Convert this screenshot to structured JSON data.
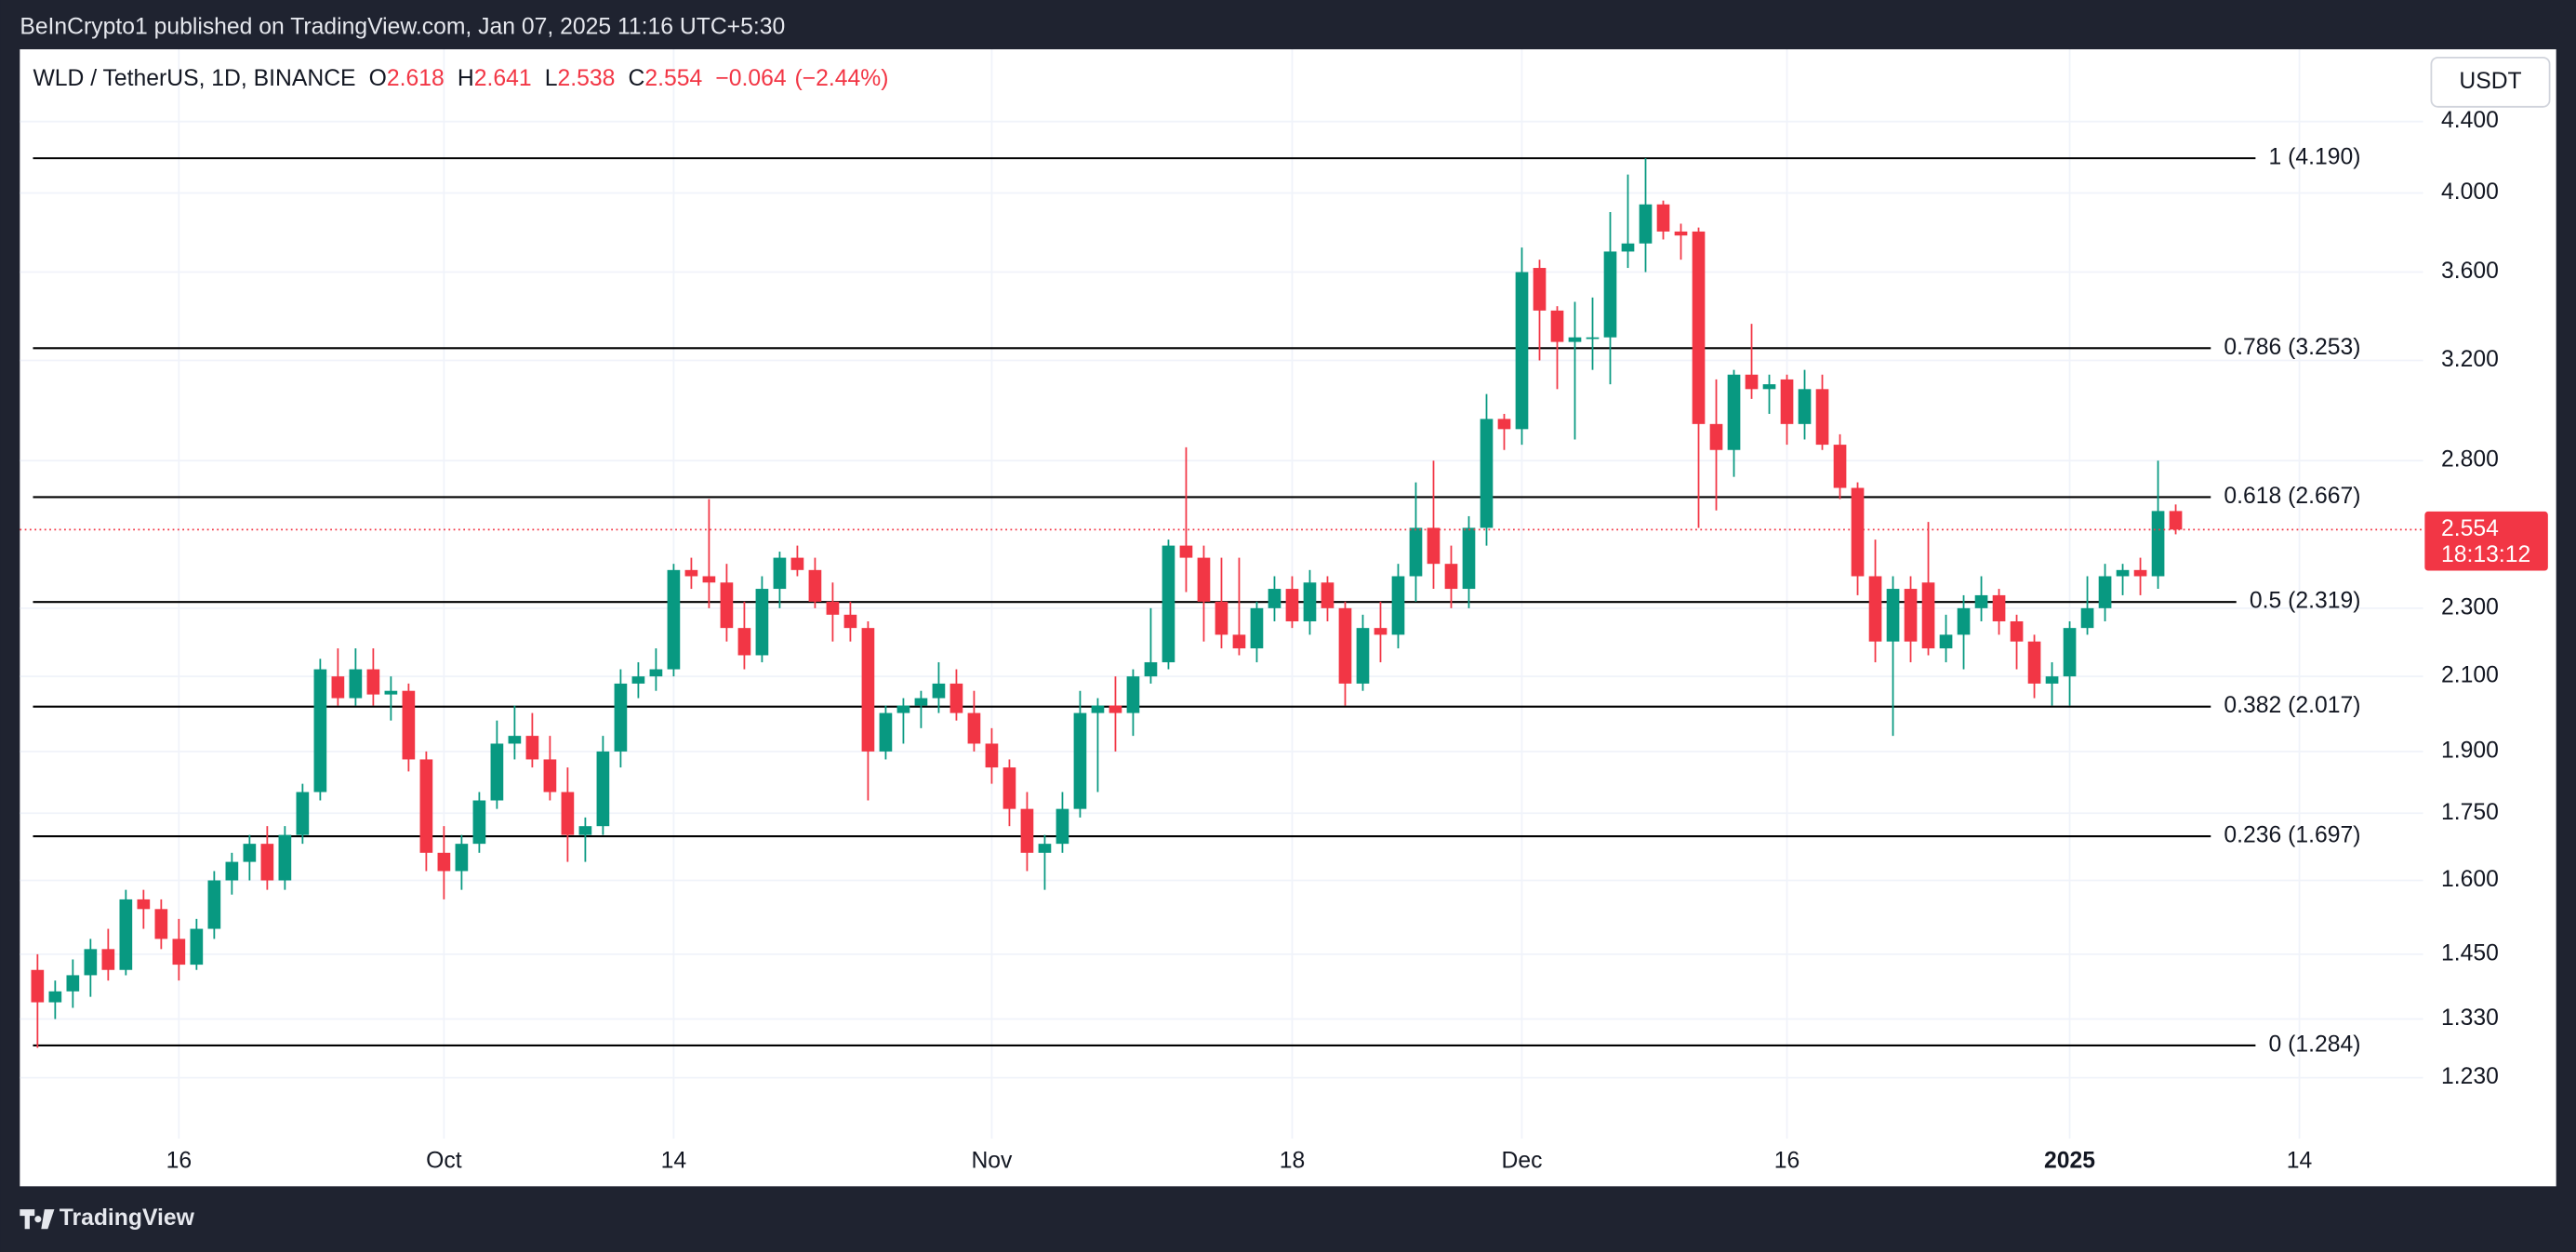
{
  "header": "BeInCrypto1 published on TradingView.com, Jan 07, 2025 11:16 UTC+5:30",
  "footer": "TradingView",
  "chart_data": {
    "type": "candlestick",
    "symbol": "WLD / TetherUS, 1D, BINANCE",
    "ohlc_letters": [
      "O",
      "H",
      "L",
      "C"
    ],
    "change": {
      "value": -0.064,
      "label": "−0.064"
    },
    "change_pct": {
      "value": -2.44,
      "label": "(−2.44%)"
    },
    "currency": "USDT",
    "countdown": "18:13:12",
    "up_color": "#089981",
    "down_color": "#f23645",
    "log_scale": true,
    "grid": true,
    "ylim": [
      1.134,
      4.845
    ],
    "yticks": [
      {
        "value": 4.4,
        "label": "4.400"
      },
      {
        "value": 4.0,
        "label": "4.000"
      },
      {
        "value": 3.6,
        "label": "3.600"
      },
      {
        "value": 3.2,
        "label": "3.200"
      },
      {
        "value": 2.8,
        "label": "2.800"
      },
      {
        "value": 2.3,
        "label": "2.300"
      },
      {
        "value": 2.1,
        "label": "2.100"
      },
      {
        "value": 1.9,
        "label": "1.900"
      },
      {
        "value": 1.75,
        "label": "1.750"
      },
      {
        "value": 1.6,
        "label": "1.600"
      },
      {
        "value": 1.45,
        "label": "1.450"
      },
      {
        "value": 1.33,
        "label": "1.330"
      },
      {
        "value": 1.23,
        "label": "1.230"
      }
    ],
    "fib_levels": [
      {
        "value": 4.19,
        "label": "1 (4.190)"
      },
      {
        "value": 3.253,
        "label": "0.786 (3.253)"
      },
      {
        "value": 2.667,
        "label": "0.618 (2.667)"
      },
      {
        "value": 2.319,
        "label": "0.5 (2.319)"
      },
      {
        "value": 2.017,
        "label": "0.382 (2.017)"
      },
      {
        "value": 1.697,
        "label": "0.236 (1.697)"
      },
      {
        "value": 1.284,
        "label": "0 (1.284)"
      }
    ],
    "categories": [
      null,
      null,
      null,
      null,
      null,
      null,
      null,
      null,
      "16",
      null,
      null,
      null,
      null,
      null,
      null,
      null,
      null,
      null,
      null,
      null,
      null,
      null,
      null,
      "Oct",
      null,
      null,
      null,
      null,
      null,
      null,
      null,
      null,
      null,
      null,
      null,
      null,
      "14",
      null,
      null,
      null,
      null,
      null,
      null,
      null,
      null,
      null,
      null,
      null,
      null,
      null,
      null,
      null,
      null,
      null,
      "Nov",
      null,
      null,
      null,
      null,
      null,
      null,
      null,
      null,
      null,
      null,
      null,
      null,
      null,
      null,
      null,
      null,
      "18",
      null,
      null,
      null,
      null,
      null,
      null,
      null,
      null,
      null,
      null,
      null,
      null,
      "Dec",
      null,
      null,
      null,
      null,
      null,
      null,
      null,
      null,
      null,
      null,
      null,
      null,
      null,
      null,
      "16",
      null,
      null,
      null,
      null,
      null,
      null,
      null,
      null,
      null,
      null,
      null,
      null,
      null,
      null,
      null,
      "2025",
      null,
      null,
      null,
      null,
      null,
      null,
      null,
      null,
      null,
      null,
      null,
      null,
      "14",
      null,
      null,
      null,
      null,
      null
    ],
    "candles": [
      [
        1.42,
        1.45,
        1.28,
        1.36
      ],
      [
        1.36,
        1.4,
        1.33,
        1.38
      ],
      [
        1.38,
        1.44,
        1.35,
        1.41
      ],
      [
        1.41,
        1.48,
        1.37,
        1.46
      ],
      [
        1.46,
        1.5,
        1.4,
        1.42
      ],
      [
        1.42,
        1.58,
        1.41,
        1.56
      ],
      [
        1.56,
        1.58,
        1.5,
        1.54
      ],
      [
        1.54,
        1.56,
        1.46,
        1.48
      ],
      [
        1.48,
        1.52,
        1.4,
        1.43
      ],
      [
        1.43,
        1.52,
        1.42,
        1.5
      ],
      [
        1.5,
        1.62,
        1.48,
        1.6
      ],
      [
        1.6,
        1.66,
        1.57,
        1.64
      ],
      [
        1.64,
        1.7,
        1.6,
        1.68
      ],
      [
        1.68,
        1.72,
        1.58,
        1.6
      ],
      [
        1.6,
        1.72,
        1.58,
        1.7
      ],
      [
        1.7,
        1.82,
        1.68,
        1.8
      ],
      [
        1.8,
        2.15,
        1.78,
        2.12
      ],
      [
        2.1,
        2.18,
        2.02,
        2.04
      ],
      [
        2.04,
        2.18,
        2.02,
        2.12
      ],
      [
        2.12,
        2.18,
        2.02,
        2.05
      ],
      [
        2.05,
        2.1,
        1.98,
        2.06
      ],
      [
        2.06,
        2.08,
        1.85,
        1.88
      ],
      [
        1.88,
        1.9,
        1.62,
        1.66
      ],
      [
        1.66,
        1.72,
        1.56,
        1.62
      ],
      [
        1.62,
        1.7,
        1.58,
        1.68
      ],
      [
        1.68,
        1.8,
        1.66,
        1.78
      ],
      [
        1.78,
        1.98,
        1.76,
        1.92
      ],
      [
        1.92,
        2.02,
        1.88,
        1.94
      ],
      [
        1.94,
        2.0,
        1.86,
        1.88
      ],
      [
        1.88,
        1.94,
        1.78,
        1.8
      ],
      [
        1.8,
        1.86,
        1.64,
        1.7
      ],
      [
        1.7,
        1.74,
        1.64,
        1.72
      ],
      [
        1.72,
        1.94,
        1.7,
        1.9
      ],
      [
        1.9,
        2.12,
        1.86,
        2.08
      ],
      [
        2.08,
        2.14,
        2.04,
        2.1
      ],
      [
        2.1,
        2.18,
        2.06,
        2.12
      ],
      [
        2.12,
        2.44,
        2.1,
        2.42
      ],
      [
        2.42,
        2.46,
        2.36,
        2.4
      ],
      [
        2.4,
        2.66,
        2.3,
        2.38
      ],
      [
        2.38,
        2.44,
        2.2,
        2.24
      ],
      [
        2.24,
        2.32,
        2.12,
        2.16
      ],
      [
        2.16,
        2.4,
        2.14,
        2.36
      ],
      [
        2.36,
        2.48,
        2.3,
        2.46
      ],
      [
        2.46,
        2.5,
        2.4,
        2.42
      ],
      [
        2.42,
        2.46,
        2.3,
        2.32
      ],
      [
        2.32,
        2.38,
        2.2,
        2.28
      ],
      [
        2.28,
        2.32,
        2.2,
        2.24
      ],
      [
        2.24,
        2.26,
        1.78,
        1.9
      ],
      [
        1.9,
        2.02,
        1.88,
        2.0
      ],
      [
        2.0,
        2.04,
        1.92,
        2.02
      ],
      [
        2.02,
        2.06,
        1.96,
        2.04
      ],
      [
        2.04,
        2.14,
        2.0,
        2.08
      ],
      [
        2.08,
        2.12,
        1.98,
        2.0
      ],
      [
        2.0,
        2.06,
        1.9,
        1.92
      ],
      [
        1.92,
        1.96,
        1.82,
        1.86
      ],
      [
        1.86,
        1.88,
        1.72,
        1.76
      ],
      [
        1.76,
        1.8,
        1.62,
        1.66
      ],
      [
        1.66,
        1.7,
        1.58,
        1.68
      ],
      [
        1.68,
        1.8,
        1.66,
        1.76
      ],
      [
        1.76,
        2.06,
        1.74,
        2.0
      ],
      [
        2.0,
        2.04,
        1.8,
        2.02
      ],
      [
        2.02,
        2.1,
        1.9,
        2.0
      ],
      [
        2.0,
        2.12,
        1.94,
        2.1
      ],
      [
        2.1,
        2.3,
        2.08,
        2.14
      ],
      [
        2.14,
        2.52,
        2.12,
        2.5
      ],
      [
        2.5,
        2.85,
        2.35,
        2.46
      ],
      [
        2.46,
        2.5,
        2.2,
        2.32
      ],
      [
        2.32,
        2.46,
        2.18,
        2.22
      ],
      [
        2.22,
        2.46,
        2.16,
        2.18
      ],
      [
        2.18,
        2.32,
        2.14,
        2.3
      ],
      [
        2.3,
        2.4,
        2.26,
        2.36
      ],
      [
        2.36,
        2.4,
        2.24,
        2.26
      ],
      [
        2.26,
        2.42,
        2.22,
        2.38
      ],
      [
        2.38,
        2.4,
        2.26,
        2.3
      ],
      [
        2.3,
        2.32,
        2.02,
        2.08
      ],
      [
        2.08,
        2.28,
        2.06,
        2.24
      ],
      [
        2.24,
        2.32,
        2.14,
        2.22
      ],
      [
        2.22,
        2.44,
        2.18,
        2.4
      ],
      [
        2.4,
        2.72,
        2.32,
        2.56
      ],
      [
        2.56,
        2.8,
        2.36,
        2.44
      ],
      [
        2.44,
        2.5,
        2.3,
        2.36
      ],
      [
        2.36,
        2.6,
        2.3,
        2.56
      ],
      [
        2.56,
        3.06,
        2.5,
        2.96
      ],
      [
        2.96,
        2.98,
        2.84,
        2.92
      ],
      [
        2.92,
        3.72,
        2.86,
        3.6
      ],
      [
        3.62,
        3.66,
        3.2,
        3.42
      ],
      [
        3.42,
        3.44,
        3.08,
        3.28
      ],
      [
        3.28,
        3.46,
        2.88,
        3.3
      ],
      [
        3.3,
        3.48,
        3.16,
        3.3
      ],
      [
        3.3,
        3.9,
        3.1,
        3.7
      ],
      [
        3.7,
        4.1,
        3.62,
        3.74
      ],
      [
        3.74,
        4.19,
        3.6,
        3.94
      ],
      [
        3.94,
        3.96,
        3.76,
        3.8
      ],
      [
        3.8,
        3.84,
        3.66,
        3.78
      ],
      [
        3.8,
        3.82,
        2.56,
        2.94
      ],
      [
        2.94,
        3.12,
        2.62,
        2.84
      ],
      [
        2.84,
        3.16,
        2.74,
        3.14
      ],
      [
        3.14,
        3.36,
        3.04,
        3.08
      ],
      [
        3.08,
        3.14,
        2.98,
        3.1
      ],
      [
        3.12,
        3.14,
        2.86,
        2.94
      ],
      [
        2.94,
        3.16,
        2.88,
        3.08
      ],
      [
        3.08,
        3.14,
        2.84,
        2.86
      ],
      [
        2.86,
        2.9,
        2.66,
        2.7
      ],
      [
        2.7,
        2.72,
        2.34,
        2.4
      ],
      [
        2.4,
        2.52,
        2.14,
        2.2
      ],
      [
        2.2,
        2.4,
        1.94,
        2.36
      ],
      [
        2.36,
        2.4,
        2.14,
        2.2
      ],
      [
        2.38,
        2.58,
        2.16,
        2.18
      ],
      [
        2.18,
        2.28,
        2.14,
        2.22
      ],
      [
        2.22,
        2.34,
        2.12,
        2.3
      ],
      [
        2.3,
        2.4,
        2.26,
        2.34
      ],
      [
        2.34,
        2.36,
        2.22,
        2.26
      ],
      [
        2.26,
        2.28,
        2.12,
        2.2
      ],
      [
        2.2,
        2.22,
        2.04,
        2.08
      ],
      [
        2.08,
        2.14,
        2.02,
        2.1
      ],
      [
        2.1,
        2.26,
        2.02,
        2.24
      ],
      [
        2.24,
        2.4,
        2.22,
        2.3
      ],
      [
        2.3,
        2.44,
        2.26,
        2.4
      ],
      [
        2.4,
        2.44,
        2.34,
        2.42
      ],
      [
        2.42,
        2.46,
        2.34,
        2.4
      ],
      [
        2.4,
        2.8,
        2.36,
        2.618
      ],
      [
        2.618,
        2.641,
        2.538,
        2.554
      ],
      null,
      null,
      null,
      null,
      null,
      null,
      null,
      null,
      null,
      null,
      null,
      null
    ]
  }
}
